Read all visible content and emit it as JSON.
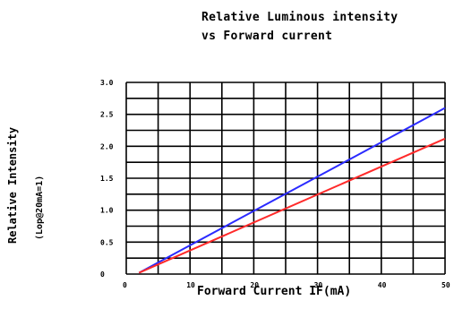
{
  "chart_data": {
    "type": "line",
    "title": "Relative Luminous intensity",
    "subtitle": "vs Forward current",
    "xlabel": "Forward Current IF(mA)",
    "ylabel": "Relative Intensity",
    "ylabel_sub": "(Lop@20mA=1)",
    "xlim": [
      0,
      50
    ],
    "ylim": [
      0,
      3.0
    ],
    "x_ticks": [
      "0",
      "10",
      "20",
      "30",
      "40",
      "50"
    ],
    "y_ticks": [
      "0",
      "0.5",
      "1.0",
      "1.5",
      "2.0",
      "2.5",
      "3.0"
    ],
    "grid": true,
    "series": [
      {
        "color": "#2a2aff",
        "x": [
          2,
          50
        ],
        "y": [
          0.02,
          2.6
        ]
      },
      {
        "color": "#ff2a2a",
        "x": [
          2,
          50
        ],
        "y": [
          0.02,
          2.12
        ]
      }
    ]
  }
}
